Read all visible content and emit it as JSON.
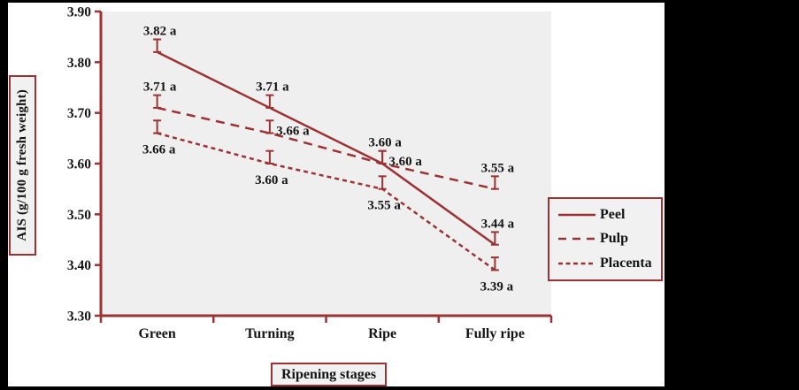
{
  "figure": {
    "outer_background": "#000000",
    "canvas_background": "#ffffff",
    "accent_color": "#9C3233",
    "plot_background": "#F0EFEF",
    "label_box_background": "#F2F1F1",
    "text_color": "#141414"
  },
  "chart_data": {
    "type": "line",
    "title": "",
    "xlabel": "Ripening stages",
    "ylabel": "AIS (g/100 g fresh weight)",
    "categories": [
      "Green",
      "Turning",
      "Ripe",
      "Fully ripe"
    ],
    "series": [
      {
        "name": "Peel",
        "line_style": "solid",
        "values": [
          3.82,
          3.71,
          3.6,
          3.44
        ],
        "point_labels": [
          "3.82 a",
          "3.71 a",
          "3.60 a",
          "3.44 a"
        ],
        "label_positions": [
          "above",
          "above",
          "above",
          "above"
        ]
      },
      {
        "name": "Pulp",
        "line_style": "dashed",
        "values": [
          3.71,
          3.66,
          3.6,
          3.55
        ],
        "point_labels": [
          "3.71 a",
          "3.66 a",
          "3.60 a",
          "3.55 a"
        ],
        "label_positions": [
          "above",
          "right",
          "right",
          "above"
        ]
      },
      {
        "name": "Placenta",
        "line_style": "short-dash",
        "values": [
          3.66,
          3.6,
          3.55,
          3.39
        ],
        "point_labels": [
          "3.66 a",
          "3.60 a",
          "3.55 a",
          "3.39 a"
        ],
        "label_positions": [
          "below",
          "below",
          "below",
          "below"
        ]
      }
    ],
    "ylim": [
      3.3,
      3.9
    ],
    "y_tick_labels": [
      "3.30",
      "3.40",
      "3.50",
      "3.60",
      "3.70",
      "3.80",
      "3.90"
    ],
    "error_bar_up": 0.025,
    "grid": "off",
    "legend_position": "right",
    "legend_labels": [
      "Peel",
      "Pulp",
      "Placenta"
    ]
  }
}
